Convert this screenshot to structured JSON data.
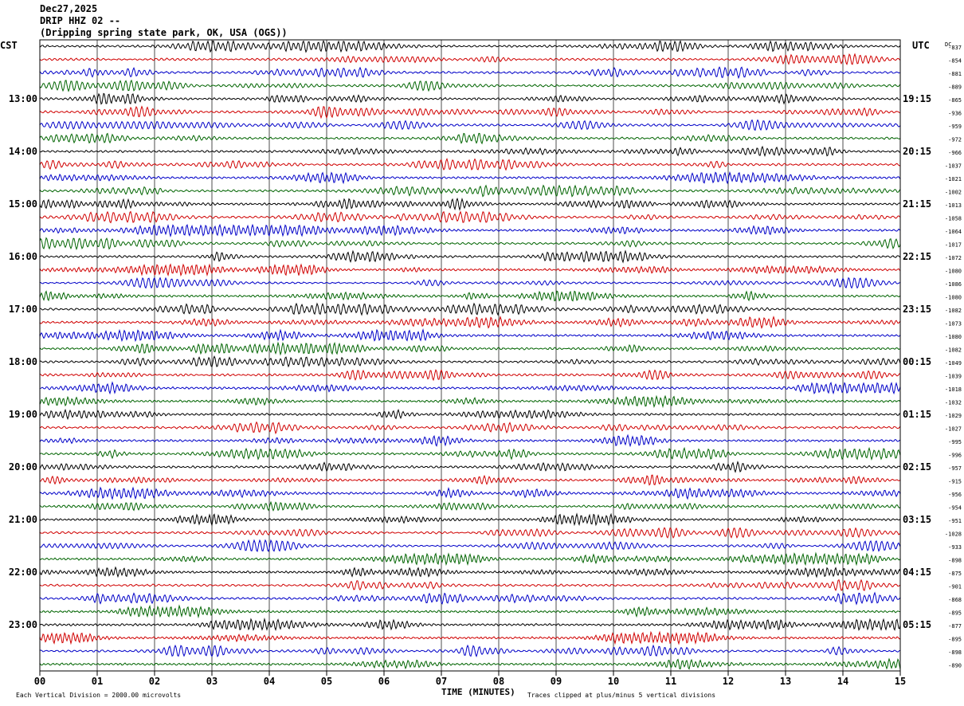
{
  "header": {
    "date": "Dec27,2025",
    "station": "DRIP HHZ 02 --",
    "location": "(Dripping spring state park, OK, USA (OGS))"
  },
  "chart_data": {
    "type": "line",
    "title": "DRIP HHZ 02 --",
    "subtitle": "(Dripping spring state park, OK, USA (OGS))",
    "xlabel": "TIME (MINUTES)",
    "ylabel_left": "CST",
    "ylabel_right": "UTC",
    "dc_label": "DC",
    "xlim": [
      0,
      15
    ],
    "x_ticks": [
      "00",
      "01",
      "02",
      "03",
      "04",
      "05",
      "06",
      "07",
      "08",
      "09",
      "10",
      "11",
      "12",
      "13",
      "14",
      "15"
    ],
    "left_hour_labels": [
      {
        "row": 4,
        "label": "13:00"
      },
      {
        "row": 8,
        "label": "14:00"
      },
      {
        "row": 12,
        "label": "15:00"
      },
      {
        "row": 16,
        "label": "16:00"
      },
      {
        "row": 20,
        "label": "17:00"
      },
      {
        "row": 24,
        "label": "18:00"
      },
      {
        "row": 28,
        "label": "19:00"
      },
      {
        "row": 32,
        "label": "20:00"
      },
      {
        "row": 36,
        "label": "21:00"
      },
      {
        "row": 40,
        "label": "22:00"
      },
      {
        "row": 44,
        "label": "23:00"
      }
    ],
    "right_hour_labels": [
      {
        "row": 4,
        "label": "19:15"
      },
      {
        "row": 8,
        "label": "20:15"
      },
      {
        "row": 12,
        "label": "21:15"
      },
      {
        "row": 16,
        "label": "22:15"
      },
      {
        "row": 20,
        "label": "23:15"
      },
      {
        "row": 24,
        "label": "00:15"
      },
      {
        "row": 28,
        "label": "01:15"
      },
      {
        "row": 32,
        "label": "02:15"
      },
      {
        "row": 36,
        "label": "03:15"
      },
      {
        "row": 40,
        "label": "04:15"
      },
      {
        "row": 44,
        "label": "05:15"
      }
    ],
    "dc_offsets": [
      "-837",
      "-854",
      "-881",
      "-889",
      "-865",
      "-936",
      "-959",
      "-972",
      "-966",
      "-1037",
      "-1021",
      "-1002",
      "-1013",
      "-1058",
      "-1064",
      "-1017",
      "-1072",
      "-1080",
      "-1086",
      "-1080",
      "-1082",
      "-1073",
      "-1080",
      "-1082",
      "-1049",
      "-1039",
      "-1018",
      "-1032",
      "-1029",
      "-1027",
      "-995",
      "-996",
      "-957",
      "-915",
      "-956",
      "-954",
      "-951",
      "-1028",
      "-933",
      "-898",
      "-875",
      "-901",
      "-868",
      "-895",
      "-877",
      "-895",
      "-898",
      "-890"
    ],
    "trace_colors": [
      "#000000",
      "#d00000",
      "#0000c8",
      "#006400"
    ],
    "grid": true
  },
  "footer": {
    "scale_note": "Each Vertical Division = 2000.00 microvolts",
    "clip_note": "Traces clipped at plus/minus 5 vertical divisions"
  }
}
